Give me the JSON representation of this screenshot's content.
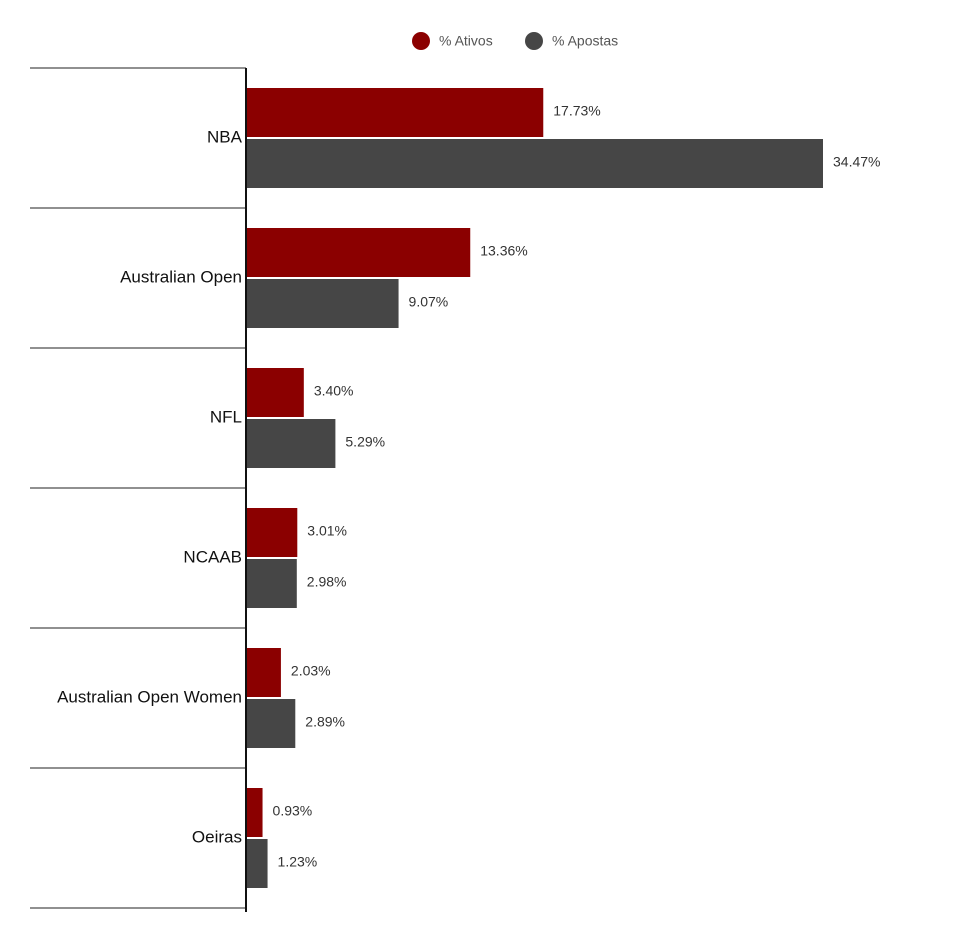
{
  "chart_data": {
    "type": "bar",
    "orientation": "horizontal",
    "categories": [
      "NBA",
      "Australian Open",
      "NFL",
      "NCAAB",
      "Australian Open Women",
      "Oeiras"
    ],
    "series": [
      {
        "name": "% Ativos",
        "color": "#8b0000",
        "values": [
          17.73,
          13.36,
          3.4,
          3.01,
          2.03,
          0.93
        ],
        "value_labels": [
          "17.73%",
          "13.36%",
          "3.40%",
          "3.01%",
          "2.03%",
          "0.93%"
        ]
      },
      {
        "name": "% Apostas",
        "color": "#464646",
        "values": [
          34.47,
          9.07,
          5.29,
          2.98,
          2.89,
          1.23
        ],
        "value_labels": [
          "34.47%",
          "9.07%",
          "5.29%",
          "2.98%",
          "2.89%",
          "1.23%"
        ]
      }
    ],
    "legend": "top"
  }
}
